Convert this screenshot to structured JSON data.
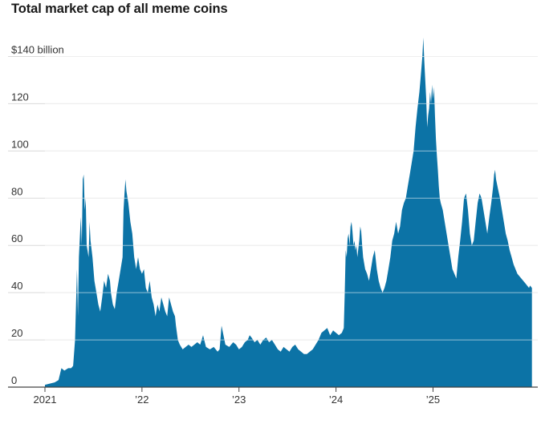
{
  "chart_data": {
    "type": "area",
    "title": "Total market cap of all meme coins",
    "unit_label": "$140 billion",
    "yticks": [
      0,
      20,
      40,
      60,
      80,
      100,
      120,
      140
    ],
    "ytick_labels": [
      "0",
      "20",
      "40",
      "60",
      "80",
      "100",
      "120",
      "$140 billion"
    ],
    "ylim": [
      0,
      150
    ],
    "xlim": [
      2021.0,
      2026.08
    ],
    "xticks": [
      2021.0,
      2022.0,
      2023.0,
      2024.0,
      2025.0
    ],
    "xtick_labels": [
      "2021",
      "’22",
      "’23",
      "’24",
      "’25"
    ],
    "fill_color": "#0c73a6",
    "gridline_color": "#d9d9d9",
    "series": [
      {
        "name": "Total market cap",
        "points": [
          [
            2021.0,
            1
          ],
          [
            2021.05,
            1.5
          ],
          [
            2021.1,
            2
          ],
          [
            2021.14,
            3
          ],
          [
            2021.17,
            8
          ],
          [
            2021.2,
            7
          ],
          [
            2021.24,
            8
          ],
          [
            2021.27,
            8
          ],
          [
            2021.29,
            9
          ],
          [
            2021.31,
            20
          ],
          [
            2021.33,
            50
          ],
          [
            2021.34,
            30
          ],
          [
            2021.35,
            55
          ],
          [
            2021.37,
            72
          ],
          [
            2021.38,
            60
          ],
          [
            2021.39,
            88
          ],
          [
            2021.4,
            90
          ],
          [
            2021.41,
            75
          ],
          [
            2021.42,
            80
          ],
          [
            2021.43,
            60
          ],
          [
            2021.45,
            55
          ],
          [
            2021.46,
            70
          ],
          [
            2021.47,
            62
          ],
          [
            2021.49,
            55
          ],
          [
            2021.51,
            45
          ],
          [
            2021.53,
            40
          ],
          [
            2021.55,
            35
          ],
          [
            2021.57,
            32
          ],
          [
            2021.59,
            38
          ],
          [
            2021.61,
            45
          ],
          [
            2021.63,
            42
          ],
          [
            2021.65,
            48
          ],
          [
            2021.67,
            45
          ],
          [
            2021.68,
            40
          ],
          [
            2021.7,
            35
          ],
          [
            2021.72,
            33
          ],
          [
            2021.74,
            40
          ],
          [
            2021.76,
            45
          ],
          [
            2021.78,
            50
          ],
          [
            2021.8,
            55
          ],
          [
            2021.81,
            75
          ],
          [
            2021.82,
            82
          ],
          [
            2021.83,
            88
          ],
          [
            2021.84,
            83
          ],
          [
            2021.86,
            78
          ],
          [
            2021.88,
            70
          ],
          [
            2021.9,
            65
          ],
          [
            2021.92,
            55
          ],
          [
            2021.94,
            50
          ],
          [
            2021.96,
            55
          ],
          [
            2021.98,
            50
          ],
          [
            2022.0,
            48
          ],
          [
            2022.02,
            50
          ],
          [
            2022.04,
            42
          ],
          [
            2022.06,
            40
          ],
          [
            2022.08,
            45
          ],
          [
            2022.1,
            38
          ],
          [
            2022.12,
            35
          ],
          [
            2022.14,
            30
          ],
          [
            2022.16,
            35
          ],
          [
            2022.18,
            32
          ],
          [
            2022.2,
            38
          ],
          [
            2022.22,
            35
          ],
          [
            2022.24,
            32
          ],
          [
            2022.26,
            30
          ],
          [
            2022.28,
            38
          ],
          [
            2022.3,
            35
          ],
          [
            2022.32,
            32
          ],
          [
            2022.34,
            30
          ],
          [
            2022.35,
            26
          ],
          [
            2022.37,
            20
          ],
          [
            2022.39,
            18
          ],
          [
            2022.42,
            16
          ],
          [
            2022.45,
            17
          ],
          [
            2022.48,
            18
          ],
          [
            2022.51,
            17
          ],
          [
            2022.54,
            18
          ],
          [
            2022.57,
            19
          ],
          [
            2022.6,
            18
          ],
          [
            2022.63,
            22
          ],
          [
            2022.66,
            17
          ],
          [
            2022.7,
            16
          ],
          [
            2022.74,
            17
          ],
          [
            2022.78,
            15
          ],
          [
            2022.8,
            16
          ],
          [
            2022.82,
            26
          ],
          [
            2022.84,
            22
          ],
          [
            2022.86,
            18
          ],
          [
            2022.9,
            17
          ],
          [
            2022.94,
            19
          ],
          [
            2022.97,
            18
          ],
          [
            2023.0,
            16
          ],
          [
            2023.03,
            17
          ],
          [
            2023.06,
            19
          ],
          [
            2023.09,
            20
          ],
          [
            2023.11,
            22
          ],
          [
            2023.13,
            21
          ],
          [
            2023.16,
            19
          ],
          [
            2023.19,
            20
          ],
          [
            2023.22,
            18
          ],
          [
            2023.25,
            20
          ],
          [
            2023.28,
            21
          ],
          [
            2023.31,
            19
          ],
          [
            2023.34,
            20
          ],
          [
            2023.37,
            18
          ],
          [
            2023.4,
            16
          ],
          [
            2023.43,
            15
          ],
          [
            2023.46,
            17
          ],
          [
            2023.49,
            16
          ],
          [
            2023.52,
            15
          ],
          [
            2023.55,
            17
          ],
          [
            2023.58,
            18
          ],
          [
            2023.61,
            16
          ],
          [
            2023.64,
            15
          ],
          [
            2023.67,
            14
          ],
          [
            2023.7,
            14
          ],
          [
            2023.73,
            15
          ],
          [
            2023.76,
            16
          ],
          [
            2023.79,
            18
          ],
          [
            2023.82,
            20
          ],
          [
            2023.85,
            23
          ],
          [
            2023.88,
            24
          ],
          [
            2023.91,
            25
          ],
          [
            2023.94,
            22
          ],
          [
            2023.97,
            24
          ],
          [
            2024.0,
            23
          ],
          [
            2024.03,
            22
          ],
          [
            2024.06,
            23
          ],
          [
            2024.08,
            25
          ],
          [
            2024.09,
            40
          ],
          [
            2024.1,
            58
          ],
          [
            2024.11,
            55
          ],
          [
            2024.12,
            63
          ],
          [
            2024.13,
            65
          ],
          [
            2024.14,
            60
          ],
          [
            2024.15,
            68
          ],
          [
            2024.16,
            70
          ],
          [
            2024.17,
            66
          ],
          [
            2024.18,
            60
          ],
          [
            2024.19,
            62
          ],
          [
            2024.2,
            58
          ],
          [
            2024.21,
            60
          ],
          [
            2024.22,
            55
          ],
          [
            2024.24,
            62
          ],
          [
            2024.25,
            68
          ],
          [
            2024.26,
            66
          ],
          [
            2024.27,
            60
          ],
          [
            2024.28,
            55
          ],
          [
            2024.3,
            50
          ],
          [
            2024.32,
            48
          ],
          [
            2024.34,
            45
          ],
          [
            2024.36,
            50
          ],
          [
            2024.38,
            55
          ],
          [
            2024.4,
            58
          ],
          [
            2024.42,
            50
          ],
          [
            2024.44,
            45
          ],
          [
            2024.46,
            42
          ],
          [
            2024.48,
            40
          ],
          [
            2024.5,
            42
          ],
          [
            2024.52,
            45
          ],
          [
            2024.54,
            50
          ],
          [
            2024.56,
            55
          ],
          [
            2024.58,
            62
          ],
          [
            2024.6,
            65
          ],
          [
            2024.62,
            70
          ],
          [
            2024.64,
            65
          ],
          [
            2024.66,
            68
          ],
          [
            2024.68,
            75
          ],
          [
            2024.7,
            78
          ],
          [
            2024.72,
            80
          ],
          [
            2024.74,
            85
          ],
          [
            2024.76,
            90
          ],
          [
            2024.78,
            95
          ],
          [
            2024.8,
            100
          ],
          [
            2024.82,
            110
          ],
          [
            2024.84,
            118
          ],
          [
            2024.86,
            125
          ],
          [
            2024.87,
            130
          ],
          [
            2024.88,
            135
          ],
          [
            2024.89,
            140
          ],
          [
            2024.9,
            148
          ],
          [
            2024.91,
            138
          ],
          [
            2024.92,
            130
          ],
          [
            2024.93,
            122
          ],
          [
            2024.94,
            110
          ],
          [
            2024.95,
            115
          ],
          [
            2024.96,
            118
          ],
          [
            2024.97,
            125
          ],
          [
            2024.98,
            120
          ],
          [
            2024.99,
            128
          ],
          [
            2025.0,
            122
          ],
          [
            2025.01,
            127
          ],
          [
            2025.02,
            115
          ],
          [
            2025.03,
            105
          ],
          [
            2025.04,
            98
          ],
          [
            2025.05,
            92
          ],
          [
            2025.06,
            85
          ],
          [
            2025.07,
            80
          ],
          [
            2025.08,
            78
          ],
          [
            2025.1,
            75
          ],
          [
            2025.12,
            70
          ],
          [
            2025.14,
            65
          ],
          [
            2025.16,
            60
          ],
          [
            2025.18,
            55
          ],
          [
            2025.2,
            50
          ],
          [
            2025.22,
            48
          ],
          [
            2025.24,
            46
          ],
          [
            2025.26,
            55
          ],
          [
            2025.28,
            62
          ],
          [
            2025.3,
            70
          ],
          [
            2025.32,
            80
          ],
          [
            2025.34,
            82
          ],
          [
            2025.36,
            75
          ],
          [
            2025.38,
            65
          ],
          [
            2025.4,
            60
          ],
          [
            2025.42,
            62
          ],
          [
            2025.44,
            70
          ],
          [
            2025.46,
            78
          ],
          [
            2025.48,
            82
          ],
          [
            2025.5,
            80
          ],
          [
            2025.52,
            75
          ],
          [
            2025.54,
            70
          ],
          [
            2025.56,
            65
          ],
          [
            2025.58,
            72
          ],
          [
            2025.6,
            78
          ],
          [
            2025.62,
            85
          ],
          [
            2025.63,
            90
          ],
          [
            2025.64,
            92
          ],
          [
            2025.65,
            88
          ],
          [
            2025.67,
            84
          ],
          [
            2025.69,
            80
          ],
          [
            2025.71,
            75
          ],
          [
            2025.73,
            70
          ],
          [
            2025.75,
            65
          ],
          [
            2025.77,
            62
          ],
          [
            2025.79,
            58
          ],
          [
            2025.81,
            55
          ],
          [
            2025.83,
            52
          ],
          [
            2025.85,
            50
          ],
          [
            2025.87,
            48
          ],
          [
            2025.89,
            47
          ],
          [
            2025.91,
            46
          ],
          [
            2025.93,
            45
          ],
          [
            2025.95,
            44
          ],
          [
            2025.97,
            43
          ],
          [
            2025.99,
            42
          ],
          [
            2026.0,
            43
          ],
          [
            2026.02,
            42
          ]
        ]
      }
    ]
  }
}
